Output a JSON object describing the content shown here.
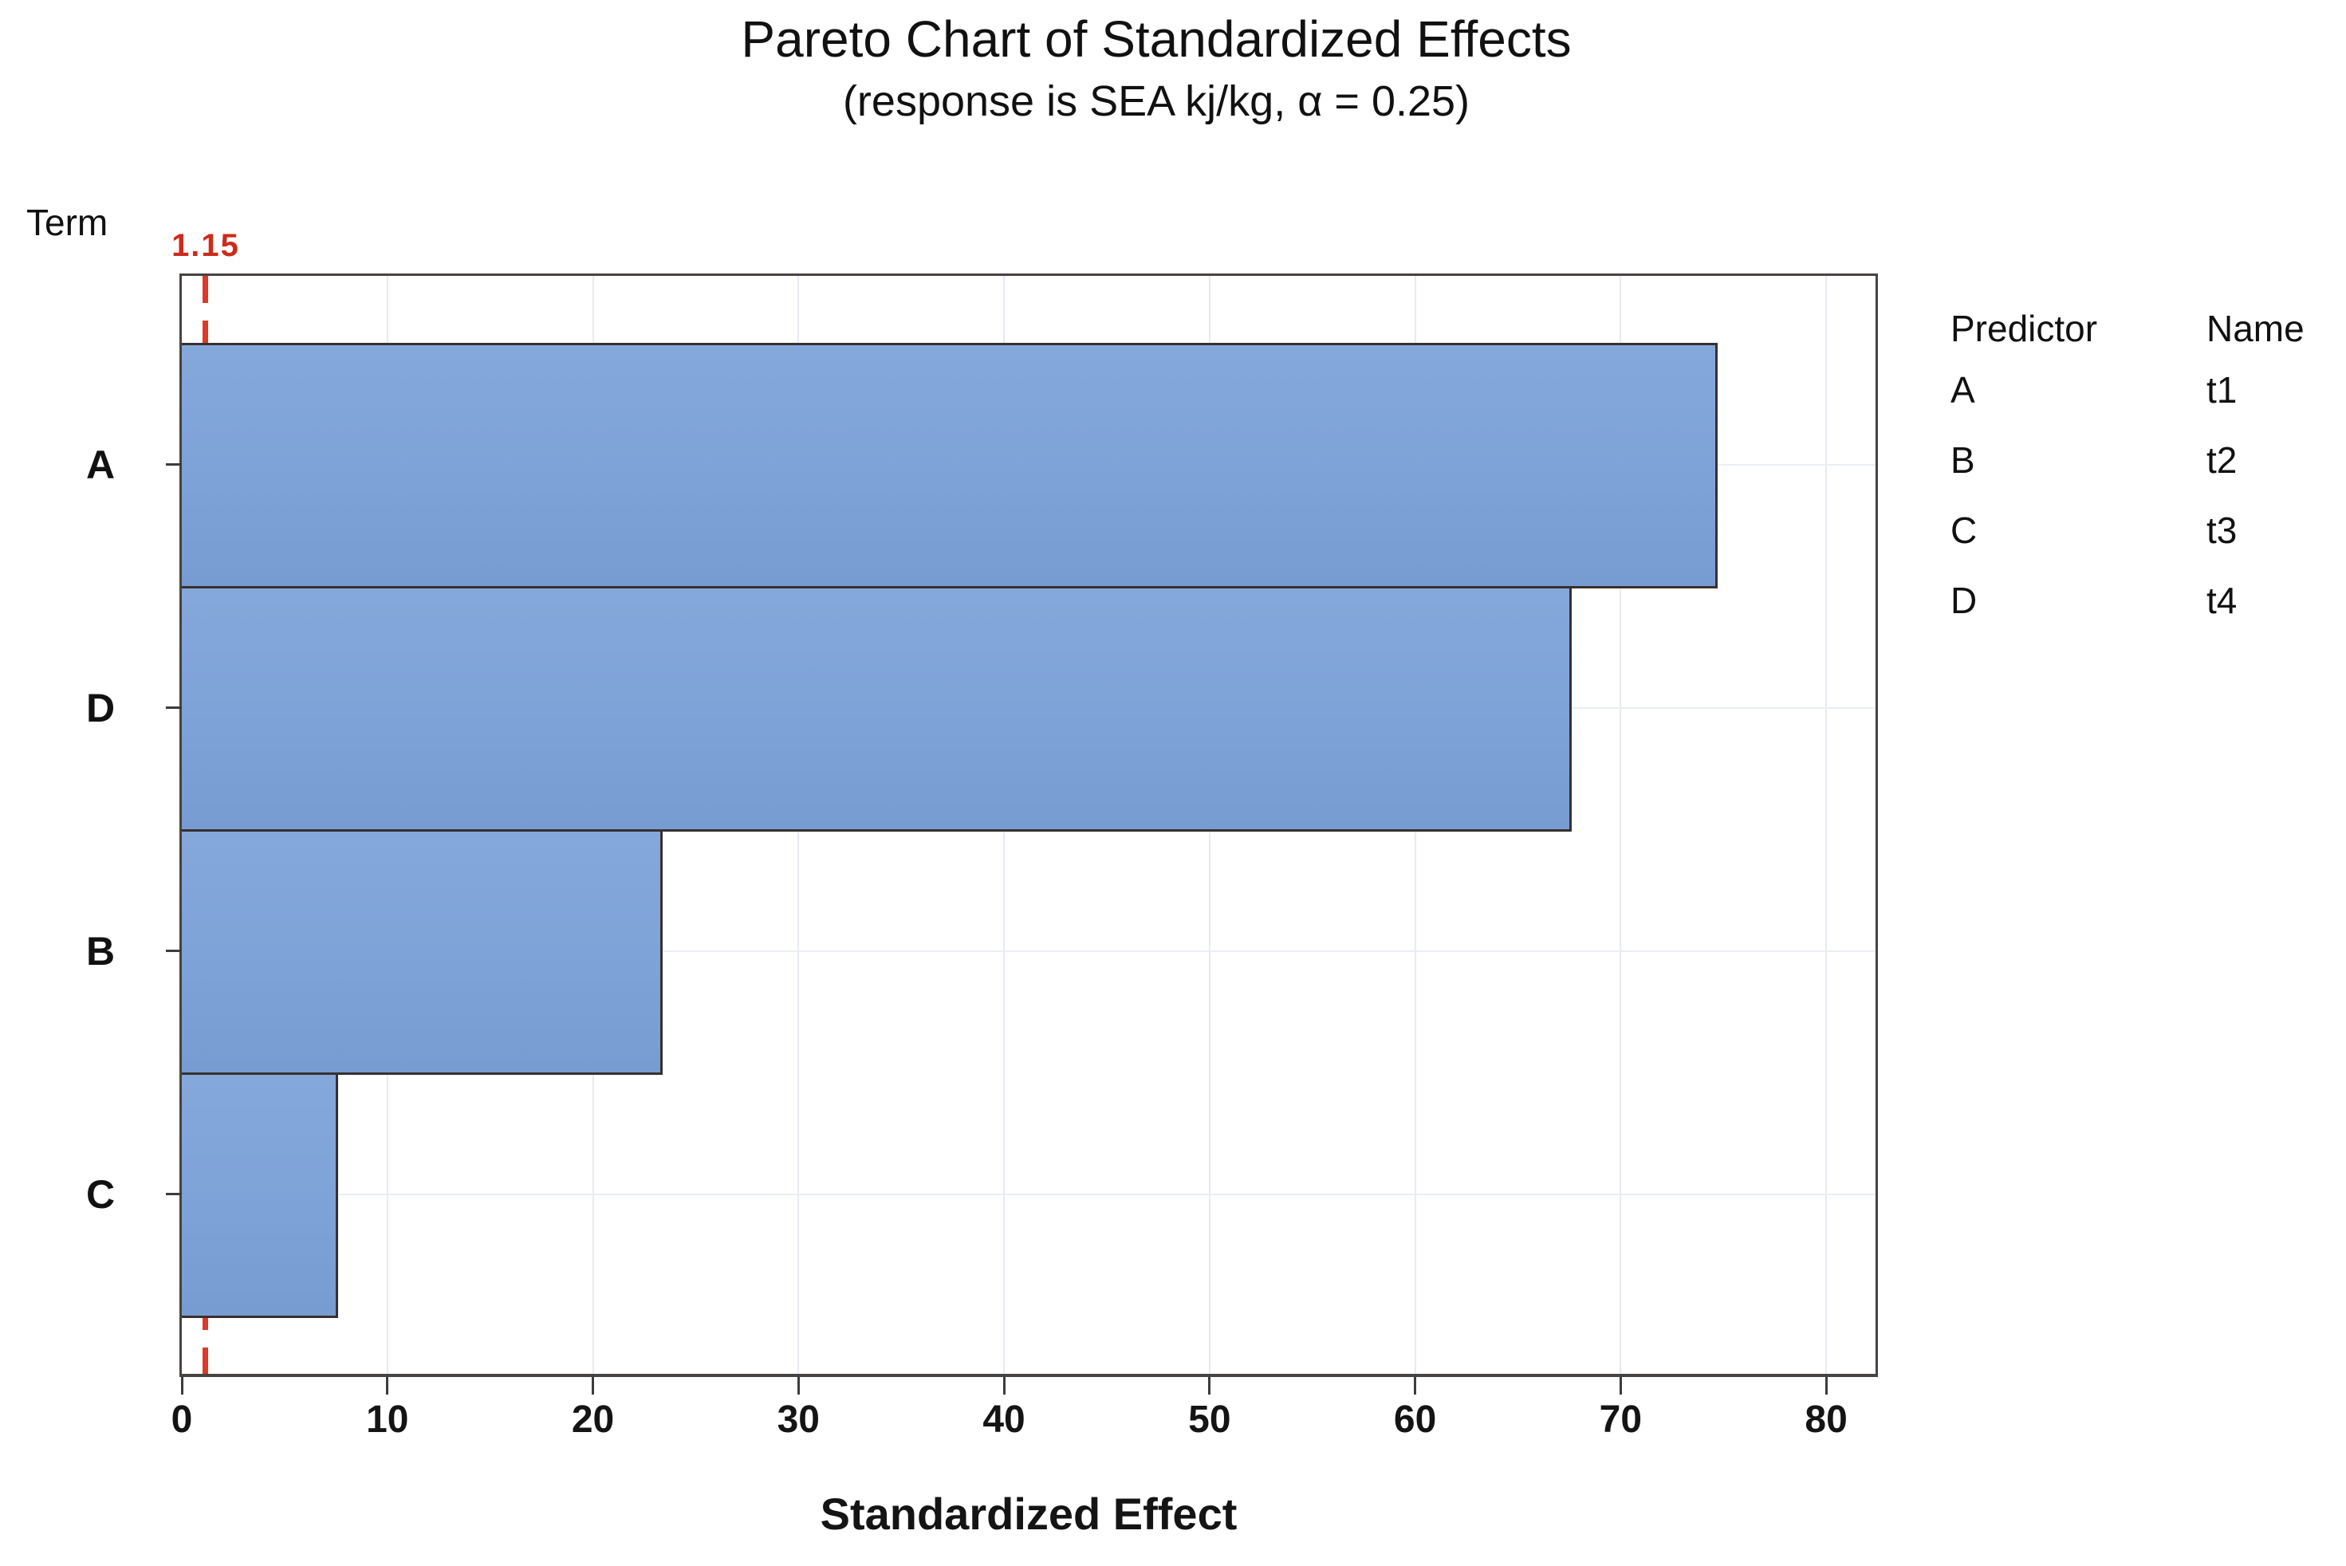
{
  "title": "Pareto Chart of Standardized Effects",
  "subtitle": "(response is SEA kj/kg, α = 0.25)",
  "term_label": "Term",
  "reference_label": "1.15",
  "xlabel": "Standardized Effect",
  "legend": {
    "header": {
      "predictor": "Predictor",
      "name": "Name"
    },
    "rows": [
      {
        "predictor": "A",
        "name": "t1"
      },
      {
        "predictor": "B",
        "name": "t2"
      },
      {
        "predictor": "C",
        "name": "t3"
      },
      {
        "predictor": "D",
        "name": "t4"
      }
    ]
  },
  "colors": {
    "bar_fill": "#7ea2d8",
    "bar_border": "#37302f",
    "reference_line": "#de3a28",
    "reference_text": "#cc2b1c",
    "frame_border": "#474340",
    "text": "#111111",
    "gridline": "#e8edf3"
  },
  "chart_data": {
    "type": "bar",
    "orientation": "horizontal",
    "title": "Pareto Chart of Standardized Effects",
    "subtitle": "(response is SEA kj/kg, α = 0.25)",
    "xlabel": "Standardized Effect",
    "ylabel": "Term",
    "categories": [
      "A",
      "D",
      "B",
      "C"
    ],
    "values": [
      74.7,
      67.6,
      23.4,
      7.6
    ],
    "reference_line": 1.15,
    "reference_label": "1.15",
    "x_ticks": [
      0,
      10,
      20,
      30,
      40,
      50,
      60,
      70,
      80
    ],
    "xlim": [
      0,
      82.4
    ],
    "grid": "faint",
    "legend_position": "right",
    "legend_table": {
      "columns": [
        "Predictor",
        "Name"
      ],
      "rows": [
        [
          "A",
          "t1"
        ],
        [
          "B",
          "t2"
        ],
        [
          "C",
          "t3"
        ],
        [
          "D",
          "t4"
        ]
      ]
    }
  }
}
